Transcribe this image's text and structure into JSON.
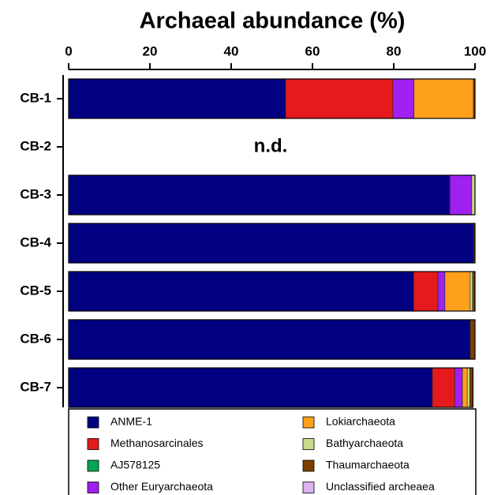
{
  "chart_data": {
    "type": "stacked-barh",
    "title": "Archaeal abundance (%)",
    "categories": [
      "CB-1",
      "CB-2",
      "CB-3",
      "CB-4",
      "CB-5",
      "CB-6",
      "CB-7"
    ],
    "annotations": [
      "n.d."
    ],
    "xlim": [
      0,
      100
    ],
    "xticks": [
      0,
      20,
      40,
      60,
      80,
      100
    ],
    "series": [
      {
        "name": "ANME-1",
        "color": "#000080",
        "values": [
          53.4,
          null,
          93.8,
          99.7,
          84.9,
          98.8,
          89.5
        ]
      },
      {
        "name": "Methanosarcinales",
        "color": "#e41a1c",
        "values": [
          26.4,
          null,
          0,
          0,
          6.0,
          0,
          5.5
        ]
      },
      {
        "name": "AJ578125",
        "color": "#00a651",
        "values": [
          0,
          null,
          0,
          0,
          0,
          0,
          0
        ]
      },
      {
        "name": "Other Euryarchaeota",
        "color": "#a020f0",
        "values": [
          5.2,
          null,
          5.4,
          0,
          1.7,
          0,
          1.9
        ]
      },
      {
        "name": "Lokiarchaeota",
        "color": "#ffa01c",
        "values": [
          14.6,
          null,
          0,
          0,
          6.2,
          0,
          1.2
        ]
      },
      {
        "name": "Bathyarchaeota",
        "color": "#c9d98c",
        "values": [
          0,
          null,
          0.8,
          0,
          0.6,
          0,
          0.6
        ]
      },
      {
        "name": "Thaumarchaeota",
        "color": "#7b3f00",
        "values": [
          0.4,
          null,
          0,
          0.3,
          0.6,
          1.2,
          0.8
        ]
      },
      {
        "name": "Unclassified archeaea",
        "color": "#dcb4f0",
        "values": [
          0,
          null,
          0,
          0,
          0,
          0,
          0
        ]
      }
    ]
  }
}
